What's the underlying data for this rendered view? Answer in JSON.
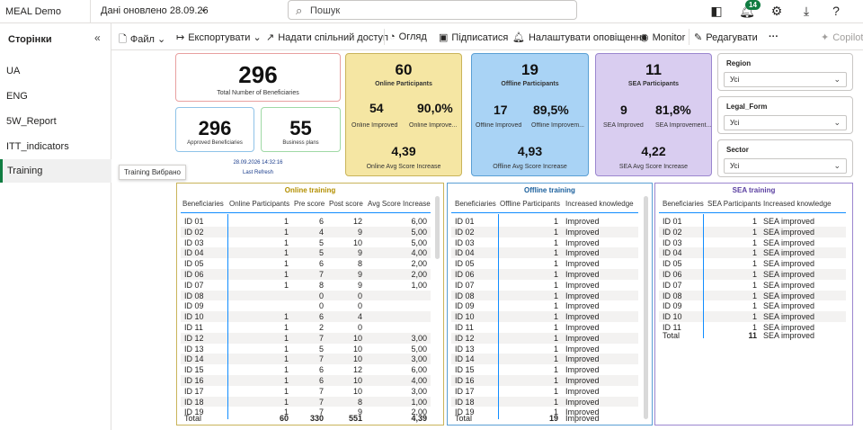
{
  "app": {
    "name": "MEAL Demo",
    "updated": "Дані оновлено 28.09.26",
    "search_placeholder": "Пошук",
    "notification_count": "14"
  },
  "sidebar": {
    "title": "Сторінки",
    "pages": [
      {
        "label": "UA"
      },
      {
        "label": "ENG"
      },
      {
        "label": "5W_Report"
      },
      {
        "label": "ITT_indicators"
      },
      {
        "label": "Training"
      }
    ],
    "tooltip": "Training Вибрано"
  },
  "toolbar": {
    "file": "Файл",
    "export": "Експортувати",
    "share": "Надати спільний доступ",
    "view": "Огляд",
    "subscribe": "Підписатися",
    "alerts": "Налаштувати оповіщення",
    "monitor": "Monitor",
    "edit": "Редагувати",
    "more": "···",
    "copilot": "Copilot"
  },
  "kpi": {
    "total": {
      "value": "296",
      "label": "Total Number of Beneficiaries"
    },
    "approved": {
      "value": "296",
      "label": "Approved Beneficiaries"
    },
    "business": {
      "value": "55",
      "label": "Business plans"
    },
    "refresh_time": "28.09.2026 14:32:16",
    "refresh_label": "Last Refresh",
    "online": {
      "value": "60",
      "title": "Online Participants",
      "improved": "54",
      "improved_label": "Online Improved",
      "pct": "90,0%",
      "pct_label": "Online Improve...",
      "avg": "4,39",
      "avg_label": "Online Avg Score Increase"
    },
    "offline": {
      "value": "19",
      "title": "Offline Participants",
      "improved": "17",
      "improved_label": "Offline Improved",
      "pct": "89,5%",
      "pct_label": "Offline Improvem...",
      "avg": "4,93",
      "avg_label": "Offline Avg Score Increase"
    },
    "sea": {
      "value": "11",
      "title": "SEA Participants",
      "improved": "9",
      "improved_label": "SEA Improved",
      "pct": "81,8%",
      "pct_label": "SEA Improvement...",
      "avg": "4,22",
      "avg_label": "SEA Avg Score Increase"
    }
  },
  "filters": [
    {
      "title": "Region",
      "value": "Усі"
    },
    {
      "title": "Legal_Form",
      "value": "Усі"
    },
    {
      "title": "Sector",
      "value": "Усі"
    }
  ],
  "online_table": {
    "title": "Online training",
    "headers": [
      "Beneficiaries",
      "Online Participants",
      "Pre score",
      "Post score",
      "Avg Score Increase"
    ],
    "rows": [
      [
        "ID 01",
        "1",
        "6",
        "12",
        "6,00"
      ],
      [
        "ID 02",
        "1",
        "4",
        "9",
        "5,00"
      ],
      [
        "ID 03",
        "1",
        "5",
        "10",
        "5,00"
      ],
      [
        "ID 04",
        "1",
        "5",
        "9",
        "4,00"
      ],
      [
        "ID 05",
        "1",
        "6",
        "8",
        "2,00"
      ],
      [
        "ID 06",
        "1",
        "7",
        "9",
        "2,00"
      ],
      [
        "ID 07",
        "1",
        "8",
        "9",
        "1,00"
      ],
      [
        "ID 08",
        "",
        "0",
        "0",
        ""
      ],
      [
        "ID 09",
        "",
        "0",
        "0",
        ""
      ],
      [
        "ID 10",
        "1",
        "6",
        "4",
        ""
      ],
      [
        "ID 11",
        "1",
        "2",
        "0",
        ""
      ],
      [
        "ID 12",
        "1",
        "7",
        "10",
        "3,00"
      ],
      [
        "ID 13",
        "1",
        "5",
        "10",
        "5,00"
      ],
      [
        "ID 14",
        "1",
        "7",
        "10",
        "3,00"
      ],
      [
        "ID 15",
        "1",
        "6",
        "12",
        "6,00"
      ],
      [
        "ID 16",
        "1",
        "6",
        "10",
        "4,00"
      ],
      [
        "ID 17",
        "1",
        "7",
        "10",
        "3,00"
      ],
      [
        "ID 18",
        "1",
        "7",
        "8",
        "1,00"
      ],
      [
        "ID 19",
        "1",
        "7",
        "9",
        "2,00"
      ]
    ],
    "total": [
      "Total",
      "60",
      "330",
      "551",
      "4,39"
    ]
  },
  "offline_table": {
    "title": "Offline training",
    "headers": [
      "Beneficiaries",
      "Offline Participants",
      "Increased knowledge"
    ],
    "rows": [
      [
        "ID 01",
        "1",
        "Improved"
      ],
      [
        "ID 02",
        "1",
        "Improved"
      ],
      [
        "ID 03",
        "1",
        "Improved"
      ],
      [
        "ID 04",
        "1",
        "Improved"
      ],
      [
        "ID 05",
        "1",
        "Improved"
      ],
      [
        "ID 06",
        "1",
        "Improved"
      ],
      [
        "ID 07",
        "1",
        "Improved"
      ],
      [
        "ID 08",
        "1",
        "Improved"
      ],
      [
        "ID 09",
        "1",
        "Improved"
      ],
      [
        "ID 10",
        "1",
        "Improved"
      ],
      [
        "ID 11",
        "1",
        "Improved"
      ],
      [
        "ID 12",
        "1",
        "Improved"
      ],
      [
        "ID 13",
        "1",
        "Improved"
      ],
      [
        "ID 14",
        "1",
        "Improved"
      ],
      [
        "ID 15",
        "1",
        "Improved"
      ],
      [
        "ID 16",
        "1",
        "Improved"
      ],
      [
        "ID 17",
        "1",
        "Improved"
      ],
      [
        "ID 18",
        "1",
        "Improved"
      ],
      [
        "ID 19",
        "1",
        "Improved"
      ]
    ],
    "total": [
      "Total",
      "19",
      "Improved"
    ]
  },
  "sea_table": {
    "title": "SEA training",
    "headers": [
      "Beneficiaries",
      "SEA Participants",
      "Increased knowledge"
    ],
    "rows": [
      [
        "ID 01",
        "1",
        "SEA improved"
      ],
      [
        "ID 02",
        "1",
        "SEA improved"
      ],
      [
        "ID 03",
        "1",
        "SEA improved"
      ],
      [
        "ID 04",
        "1",
        "SEA improved"
      ],
      [
        "ID 05",
        "1",
        "SEA improved"
      ],
      [
        "ID 06",
        "1",
        "SEA improved"
      ],
      [
        "ID 07",
        "1",
        "SEA improved"
      ],
      [
        "ID 08",
        "1",
        "SEA improved"
      ],
      [
        "ID 09",
        "1",
        "SEA improved"
      ],
      [
        "ID 10",
        "1",
        "SEA improved"
      ],
      [
        "ID 11",
        "1",
        "SEA improved"
      ]
    ],
    "total": [
      "Total",
      "11",
      "SEA improved"
    ]
  },
  "colors": {
    "online": "#f5e6a3",
    "offline": "#a9d3f5",
    "sea": "#d9cdf0",
    "accent": "#118dff",
    "selected": "#107c41"
  }
}
